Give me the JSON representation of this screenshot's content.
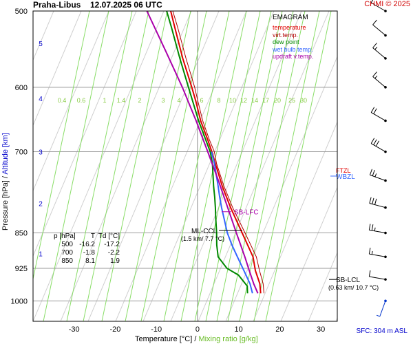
{
  "header": {
    "station": "Praha-Libus",
    "datetime": "12.07.2025 06 UTC",
    "copyright": "CHMI © 2025"
  },
  "legend": {
    "title": "EMAGRAM",
    "items": [
      {
        "label": "temperature",
        "color": "#e00000"
      },
      {
        "label": "virt.temp.",
        "color": "#b00000"
      },
      {
        "label": "dew point",
        "color": "#008800"
      },
      {
        "label": "wet bulb temp.",
        "color": "#3366ff"
      },
      {
        "label": "updraft v.temp.",
        "color": "#aa00aa"
      }
    ]
  },
  "table": {
    "headers": [
      "p [hPa]",
      "T",
      "Td [°C]"
    ],
    "rows": [
      [
        "500",
        "-16.2",
        "-17.2"
      ],
      [
        "700",
        "-1.8",
        "-2.2"
      ],
      [
        "850",
        "8.1",
        "1.9"
      ]
    ]
  },
  "annotations": {
    "sb_lfc": "SB-LFC",
    "ml_ccl": "ML-CCL",
    "ml_ccl_detail": "(1.5 km/ 7.7 °C)",
    "sb_lcl": "SB-LCL",
    "sb_lcl_detail": "(0.63 km/ 10.7 °C)",
    "wbzl": "WBZL",
    "ftzl": "FTZL"
  },
  "footer": {
    "sfc": "SFC: 304 m ASL"
  },
  "chart_data": {
    "type": "line",
    "xlabel": "Temperature [°C]",
    "xlabel_sep": "/",
    "xlabel2": "Mixing ratio [g/kg]",
    "ylabel": "Pressure [hPa]",
    "ylabel_sep": "/",
    "ylabel2": "Altitude [km]",
    "xlim": [
      -40,
      34
    ],
    "ylim": [
      1050,
      500
    ],
    "y_scale": "log",
    "x_ticks": [
      -30,
      -20,
      -10,
      0,
      10,
      20,
      30
    ],
    "y_ticks": [
      500,
      600,
      700,
      850,
      925,
      1000
    ],
    "altitude_ticks": [
      {
        "km": "1",
        "p": 893
      },
      {
        "km": "2",
        "p": 792
      },
      {
        "km": "3",
        "p": 700
      },
      {
        "km": "4",
        "p": 616
      },
      {
        "km": "5",
        "p": 540
      }
    ],
    "mixing_ratio_labels": [
      "0.4",
      "0.6",
      "1",
      "1.4",
      "2",
      "3",
      "4",
      "6",
      "8",
      "10",
      "12",
      "14",
      "17",
      "20",
      "25",
      "30"
    ],
    "series": [
      {
        "name": "virt.temp.",
        "color": "#b00000",
        "p": [
          982,
          960,
          930,
          900,
          850,
          800,
          760,
          720,
          700,
          680,
          650,
          620,
          600,
          560,
          520,
          500
        ],
        "values": [
          15.3,
          14.8,
          13.5,
          12.3,
          8.8,
          5.0,
          2.2,
          -0.3,
          -1.2,
          -2.8,
          -5.0,
          -6.8,
          -8.0,
          -11.0,
          -14.0,
          -15.7
        ]
      },
      {
        "name": "temperature",
        "color": "#e00000",
        "p": [
          982,
          960,
          930,
          900,
          850,
          800,
          760,
          720,
          700,
          680,
          650,
          620,
          600,
          560,
          520,
          500
        ],
        "values": [
          14.5,
          14.0,
          12.5,
          11.5,
          8.1,
          4.5,
          1.8,
          -0.6,
          -1.8,
          -3.2,
          -5.5,
          -7.3,
          -8.7,
          -11.8,
          -14.7,
          -16.2
        ]
      },
      {
        "name": "dew point",
        "color": "#008800",
        "p": [
          982,
          965,
          940,
          925,
          900,
          875,
          850,
          820,
          800,
          780,
          760,
          720,
          700,
          650,
          600,
          560,
          520,
          500
        ],
        "values": [
          11.3,
          11.0,
          8.5,
          5.5,
          3.0,
          2.3,
          1.9,
          1.2,
          0.8,
          0.3,
          -0.3,
          -1.3,
          -2.2,
          -6.0,
          -9.5,
          -12.5,
          -15.5,
          -17.2
        ]
      },
      {
        "name": "wet bulb temp.",
        "color": "#3366ff",
        "p": [
          982,
          960,
          930,
          900,
          875,
          850,
          820,
          800,
          780,
          760,
          740,
          720,
          700
        ],
        "values": [
          12.5,
          11.6,
          9.7,
          7.7,
          6.0,
          4.5,
          3.2,
          2.3,
          1.5,
          0.8,
          0.0,
          -0.8,
          -1.9
        ]
      },
      {
        "name": "updraft v.temp.",
        "color": "#aa00aa",
        "p": [
          982,
          960,
          930,
          900,
          850,
          800,
          750,
          700,
          650,
          600,
          550,
          500
        ],
        "values": [
          13.8,
          12.5,
          11.0,
          9.5,
          6.7,
          3.8,
          0.7,
          -2.8,
          -6.6,
          -11.0,
          -16.2,
          -22.0
        ]
      }
    ],
    "wind_barbs": [
      {
        "p": 1000,
        "dir": 200,
        "speed": 5
      },
      {
        "p": 950,
        "dir": 280,
        "speed": 10
      },
      {
        "p": 900,
        "dir": 280,
        "speed": 15
      },
      {
        "p": 850,
        "dir": 280,
        "speed": 25
      },
      {
        "p": 800,
        "dir": 285,
        "speed": 30
      },
      {
        "p": 750,
        "dir": 290,
        "speed": 25
      },
      {
        "p": 700,
        "dir": 300,
        "speed": 30
      },
      {
        "p": 650,
        "dir": 300,
        "speed": 20
      },
      {
        "p": 600,
        "dir": 310,
        "speed": 15
      },
      {
        "p": 560,
        "dir": 310,
        "speed": 15
      },
      {
        "p": 530,
        "dir": 310,
        "speed": 10
      },
      {
        "p": 500,
        "dir": 300,
        "speed": 10
      }
    ]
  }
}
